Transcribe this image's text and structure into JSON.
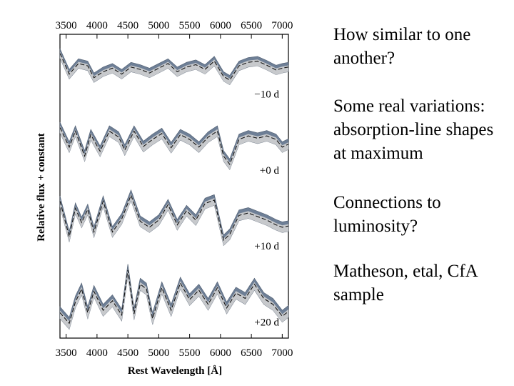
{
  "notes": [
    "How similar to one another?",
    "Some real variations: absorption-line shapes at maximum",
    "Connections to luminosity?",
    "Matheson, etal, CfA sample"
  ],
  "chart_data": {
    "type": "line",
    "xlabel": "Rest Wavelength [Å]",
    "ylabel": "Relative flux + constant",
    "xticks": [
      3500,
      4000,
      4500,
      5000,
      5500,
      6000,
      6500,
      7000
    ],
    "xlim": [
      3400,
      7100
    ],
    "epochs": [
      {
        "label": "−10 d",
        "wavelength": [
          3400,
          3550,
          3700,
          3850,
          3950,
          4100,
          4250,
          4400,
          4550,
          4700,
          4850,
          5000,
          5150,
          5300,
          5450,
          5600,
          5750,
          5900,
          6050,
          6150,
          6300,
          6450,
          6600,
          6750,
          6900,
          7000,
          7100
        ],
        "mean_flux": [
          0.75,
          0.4,
          0.58,
          0.54,
          0.34,
          0.44,
          0.5,
          0.4,
          0.52,
          0.48,
          0.42,
          0.5,
          0.58,
          0.44,
          0.52,
          0.56,
          0.48,
          0.62,
          0.36,
          0.3,
          0.54,
          0.6,
          0.62,
          0.55,
          0.47,
          0.5,
          0.52
        ],
        "band_half_width": 0.08
      },
      {
        "label": "+0 d",
        "wavelength": [
          3400,
          3550,
          3650,
          3800,
          3900,
          4050,
          4200,
          4350,
          4450,
          4600,
          4750,
          4900,
          5050,
          5200,
          5350,
          5500,
          5650,
          5800,
          5950,
          6050,
          6150,
          6300,
          6450,
          6600,
          6750,
          6900,
          7000,
          7100
        ],
        "mean_flux": [
          0.78,
          0.45,
          0.72,
          0.3,
          0.66,
          0.38,
          0.72,
          0.62,
          0.4,
          0.72,
          0.46,
          0.58,
          0.68,
          0.44,
          0.66,
          0.58,
          0.45,
          0.62,
          0.72,
          0.3,
          0.16,
          0.58,
          0.64,
          0.6,
          0.64,
          0.58,
          0.45,
          0.5
        ],
        "band_half_width": 0.09
      },
      {
        "label": "+10 d",
        "wavelength": [
          3400,
          3550,
          3650,
          3750,
          3850,
          3950,
          4100,
          4250,
          4400,
          4550,
          4700,
          4850,
          5000,
          5150,
          5300,
          5450,
          5600,
          5750,
          5900,
          6050,
          6150,
          6300,
          6450,
          6600,
          6750,
          6900,
          7000,
          7100
        ],
        "mean_flux": [
          0.82,
          0.22,
          0.7,
          0.46,
          0.68,
          0.3,
          0.82,
          0.3,
          0.52,
          0.92,
          0.48,
          0.38,
          0.5,
          0.76,
          0.42,
          0.66,
          0.5,
          0.78,
          0.84,
          0.16,
          0.26,
          0.58,
          0.62,
          0.56,
          0.5,
          0.42,
          0.38,
          0.4
        ],
        "band_half_width": 0.09
      },
      {
        "label": "+20 d",
        "wavelength": [
          3400,
          3550,
          3650,
          3750,
          3850,
          3950,
          4100,
          4250,
          4400,
          4500,
          4600,
          4700,
          4800,
          4900,
          5050,
          5200,
          5350,
          5500,
          5650,
          5800,
          5950,
          6100,
          6250,
          6400,
          6550,
          6700,
          6850,
          7000,
          7100
        ],
        "mean_flux": [
          0.22,
          0.04,
          0.4,
          0.62,
          0.22,
          0.58,
          0.26,
          0.42,
          0.18,
          0.94,
          0.2,
          0.7,
          0.62,
          0.12,
          0.64,
          0.26,
          0.72,
          0.44,
          0.6,
          0.36,
          0.64,
          0.3,
          0.55,
          0.46,
          0.7,
          0.46,
          0.36,
          0.16,
          0.24
        ],
        "band_half_width": 0.1
      }
    ]
  }
}
